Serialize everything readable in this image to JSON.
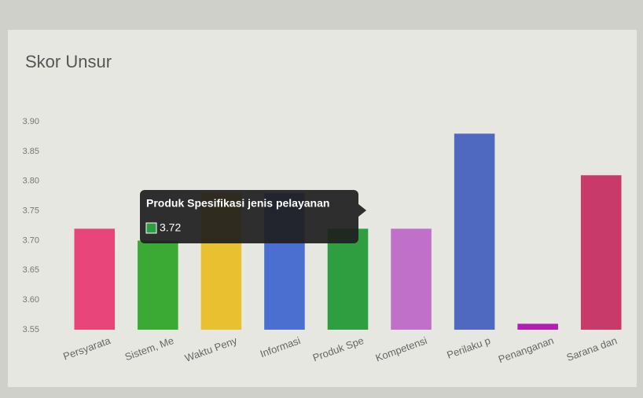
{
  "chart_data": {
    "type": "bar",
    "title": "Skor Unsur",
    "categories": [
      "Persyarata",
      "Sistem, Me",
      "Waktu Peny",
      "Informasi",
      "Produk Spe",
      "Kompetensi",
      "Perilaku p",
      "Penanganan",
      "Sarana dan"
    ],
    "values": [
      3.72,
      3.7,
      3.78,
      3.78,
      3.72,
      3.72,
      3.88,
      3.56,
      3.81
    ],
    "colors": [
      "#e8457a",
      "#3aaa35",
      "#e8c030",
      "#4a6fd0",
      "#2e9e40",
      "#c070c8",
      "#4f68c0",
      "#b020b0",
      "#c83a6a"
    ],
    "ylim": [
      3.55,
      3.92
    ],
    "yticks": [
      3.55,
      {
        "value": 3.6,
        "label": "3.60"
      },
      3.65,
      {
        "value": 3.7,
        "label": "3.70"
      },
      3.75,
      {
        "value": 3.8,
        "label": "3.80"
      },
      3.85,
      {
        "value": 3.9,
        "label": "3.90"
      }
    ],
    "grid": false,
    "tooltip": {
      "title": "Produk Spesifikasi jenis pelayanan",
      "index": 4
    }
  }
}
